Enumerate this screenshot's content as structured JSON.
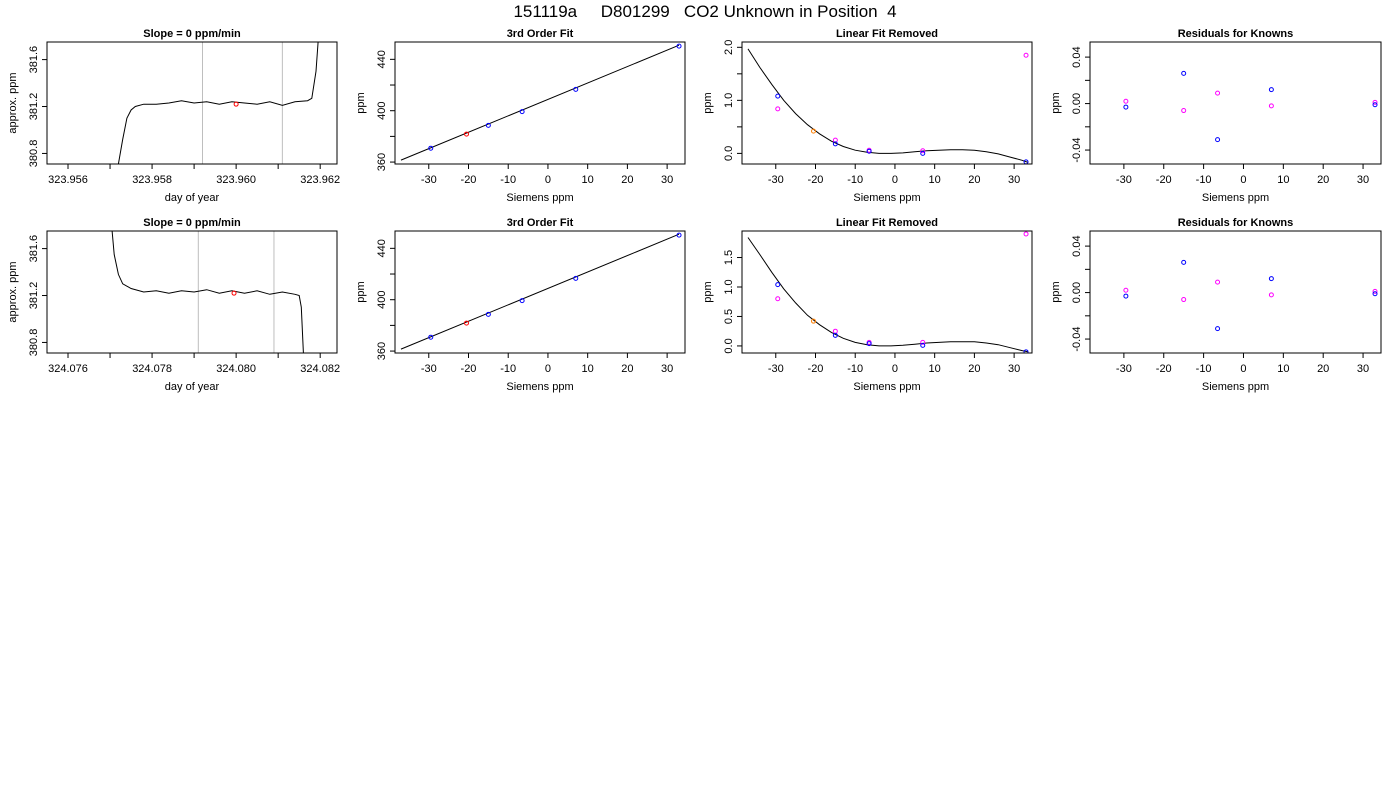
{
  "figure": {
    "title": "151119a     D801299   CO2 Unknown in Position  4"
  },
  "colors": {
    "trace": "#000000",
    "vline": "#bebebe",
    "blue": "#0000ff",
    "magenta": "#ff00ff",
    "red": "#ff0000",
    "orange": "#ff7f00"
  },
  "chart_data": [
    {
      "type": "line",
      "title": "Slope =  0  ppm/min",
      "xlabel": "day of year",
      "ylabel": "approx. ppm",
      "xlim": [
        323.9555,
        323.9624
      ],
      "ylim": [
        380.71,
        381.75
      ],
      "xticks": [
        323.956,
        323.958,
        323.96,
        323.962
      ],
      "xticklabels": [
        "323.956",
        "323.958",
        "323.960",
        "323.962"
      ],
      "xminor": [
        323.957,
        323.959,
        323.961
      ],
      "yticks": [
        380.8,
        381.2,
        381.6
      ],
      "yticklabels": [
        "380.8",
        "381.2",
        "381.6"
      ],
      "vlines": [
        323.9592,
        323.9611
      ],
      "series": [
        {
          "values": [
            [
              323.9572,
              380.71
            ],
            [
              323.9573,
              380.92
            ],
            [
              323.9574,
              381.1
            ],
            [
              323.9575,
              381.17
            ],
            [
              323.9576,
              381.2
            ],
            [
              323.9578,
              381.22
            ],
            [
              323.9581,
              381.22
            ],
            [
              323.9584,
              381.23
            ],
            [
              323.9587,
              381.25
            ],
            [
              323.959,
              381.23
            ],
            [
              323.9593,
              381.24
            ],
            [
              323.9596,
              381.22
            ],
            [
              323.9599,
              381.24
            ],
            [
              323.9602,
              381.23
            ],
            [
              323.9605,
              381.22
            ],
            [
              323.9608,
              381.24
            ],
            [
              323.9611,
              381.21
            ],
            [
              323.9614,
              381.24
            ],
            [
              323.9617,
              381.25
            ],
            [
              323.9618,
              381.27
            ],
            [
              323.9619,
              381.5
            ],
            [
              323.96195,
              381.75
            ]
          ]
        }
      ],
      "highlight": {
        "x": 323.96,
        "y": 381.22,
        "color": "red"
      }
    },
    {
      "type": "scatter",
      "title": "3rd Order Fit",
      "xlabel": "Siemens ppm",
      "ylabel": "ppm",
      "xlim": [
        -38.5,
        34.5
      ],
      "ylim": [
        358.5,
        453.5
      ],
      "xticks": [
        -30,
        -20,
        -10,
        0,
        10,
        20,
        30
      ],
      "xticklabels": [
        "-30",
        "-20",
        "-10",
        "0",
        "10",
        "20",
        "30"
      ],
      "yticks": [
        360,
        400,
        440
      ],
      "yticklabels": [
        "360",
        "400",
        "440"
      ],
      "yminor": [
        380,
        420
      ],
      "fit_line": [
        [
          -37,
          361.5
        ],
        [
          33,
          451
        ]
      ],
      "points": [
        {
          "x": -29.5,
          "y": 370.8,
          "color": "blue"
        },
        {
          "x": -20.5,
          "y": 381.8,
          "color": "red"
        },
        {
          "x": -15,
          "y": 388.6,
          "color": "blue"
        },
        {
          "x": -6.5,
          "y": 399.3,
          "color": "blue"
        },
        {
          "x": 7,
          "y": 416.6,
          "color": "blue"
        },
        {
          "x": 33,
          "y": 450.3,
          "color": "blue"
        }
      ]
    },
    {
      "type": "scatter",
      "title": "Linear Fit Removed",
      "xlabel": "Siemens ppm",
      "ylabel": "ppm",
      "xlim": [
        -38.5,
        34.5
      ],
      "ylim": [
        -0.2,
        2.1
      ],
      "xticks": [
        -30,
        -20,
        -10,
        0,
        10,
        20,
        30
      ],
      "xticklabels": [
        "-30",
        "-20",
        "-10",
        "0",
        "10",
        "20",
        "30"
      ],
      "yticks": [
        0,
        1,
        2
      ],
      "yticklabels": [
        "0.0",
        "1.0",
        "2.0"
      ],
      "yminor": [
        0.5,
        1.5
      ],
      "curve": [
        [
          -37,
          1.97
        ],
        [
          -34,
          1.62
        ],
        [
          -31,
          1.3
        ],
        [
          -28,
          1.0
        ],
        [
          -25,
          0.75
        ],
        [
          -22,
          0.54
        ],
        [
          -19,
          0.37
        ],
        [
          -16,
          0.23
        ],
        [
          -13,
          0.13
        ],
        [
          -10,
          0.06
        ],
        [
          -7,
          0.02
        ],
        [
          -4,
          0.0
        ],
        [
          -1,
          0.0
        ],
        [
          2,
          0.01
        ],
        [
          5,
          0.03
        ],
        [
          8,
          0.05
        ],
        [
          11,
          0.06
        ],
        [
          14,
          0.07
        ],
        [
          17,
          0.07
        ],
        [
          20,
          0.06
        ],
        [
          23,
          0.03
        ],
        [
          26,
          -0.01
        ],
        [
          29,
          -0.07
        ],
        [
          32,
          -0.13
        ],
        [
          33.5,
          -0.17
        ]
      ],
      "points": [
        {
          "x": -29.5,
          "y": 1.08,
          "color": "blue"
        },
        {
          "x": -29.5,
          "y": 0.84,
          "color": "magenta"
        },
        {
          "x": -20.5,
          "y": 0.42,
          "color": "orange"
        },
        {
          "x": -15,
          "y": 0.25,
          "color": "magenta"
        },
        {
          "x": -15,
          "y": 0.18,
          "color": "blue"
        },
        {
          "x": -6.5,
          "y": 0.06,
          "color": "magenta"
        },
        {
          "x": -6.5,
          "y": 0.04,
          "color": "blue"
        },
        {
          "x": 7,
          "y": 0.05,
          "color": "magenta"
        },
        {
          "x": 7,
          "y": 0.0,
          "color": "blue"
        },
        {
          "x": 33,
          "y": 1.85,
          "color": "magenta"
        },
        {
          "x": 33,
          "y": -0.16,
          "color": "blue"
        }
      ]
    },
    {
      "type": "scatter",
      "title": "Residuals for Knowns",
      "xlabel": "Siemens ppm",
      "ylabel": "ppm",
      "xlim": [
        -38.5,
        34.5
      ],
      "ylim": [
        -0.052,
        0.053
      ],
      "xticks": [
        -30,
        -20,
        -10,
        0,
        10,
        20,
        30
      ],
      "xticklabels": [
        "-30",
        "-20",
        "-10",
        "0",
        "10",
        "20",
        "30"
      ],
      "yticks": [
        -0.04,
        0,
        0.04
      ],
      "yticklabels": [
        "-0.04",
        "0.00",
        "0.04"
      ],
      "yminor": [
        -0.02,
        0.02
      ],
      "points": [
        {
          "x": -29.5,
          "y": 0.002,
          "color": "magenta"
        },
        {
          "x": -29.5,
          "y": -0.003,
          "color": "blue"
        },
        {
          "x": -15,
          "y": 0.026,
          "color": "blue"
        },
        {
          "x": -15,
          "y": -0.006,
          "color": "magenta"
        },
        {
          "x": -6.5,
          "y": 0.009,
          "color": "magenta"
        },
        {
          "x": -6.5,
          "y": -0.031,
          "color": "blue"
        },
        {
          "x": 7,
          "y": 0.012,
          "color": "blue"
        },
        {
          "x": 7,
          "y": -0.002,
          "color": "magenta"
        },
        {
          "x": 33,
          "y": 0.001,
          "color": "magenta"
        },
        {
          "x": 33,
          "y": -0.001,
          "color": "blue"
        }
      ]
    },
    {
      "type": "line",
      "title": "Slope =  0  ppm/min",
      "xlabel": "day of year",
      "ylabel": "approx. ppm",
      "xlim": [
        324.0755,
        324.0824
      ],
      "ylim": [
        380.71,
        381.75
      ],
      "xticks": [
        324.076,
        324.078,
        324.08,
        324.082
      ],
      "xticklabels": [
        "324.076",
        "324.078",
        "324.080",
        "324.082"
      ],
      "xminor": [
        324.077,
        324.079,
        324.081
      ],
      "yticks": [
        380.8,
        381.2,
        381.6
      ],
      "yticklabels": [
        "380.8",
        "381.2",
        "381.6"
      ],
      "vlines": [
        324.0791,
        324.0809
      ],
      "series": [
        {
          "values": [
            [
              324.07705,
              381.75
            ],
            [
              324.0771,
              381.55
            ],
            [
              324.0772,
              381.38
            ],
            [
              324.0773,
              381.3
            ],
            [
              324.0775,
              381.26
            ],
            [
              324.0778,
              381.23
            ],
            [
              324.0781,
              381.24
            ],
            [
              324.0784,
              381.22
            ],
            [
              324.0787,
              381.24
            ],
            [
              324.079,
              381.23
            ],
            [
              324.0793,
              381.25
            ],
            [
              324.0796,
              381.22
            ],
            [
              324.0799,
              381.24
            ],
            [
              324.0802,
              381.22
            ],
            [
              324.0805,
              381.24
            ],
            [
              324.0808,
              381.21
            ],
            [
              324.0811,
              381.23
            ],
            [
              324.0814,
              381.21
            ],
            [
              324.0815,
              381.2
            ],
            [
              324.08155,
              381.1
            ],
            [
              324.0816,
              380.71
            ]
          ]
        }
      ],
      "highlight": {
        "x": 324.07995,
        "y": 381.22,
        "color": "red"
      }
    },
    {
      "type": "scatter",
      "title": "3rd Order Fit",
      "xlabel": "Siemens ppm",
      "ylabel": "ppm",
      "xlim": [
        -38.5,
        34.5
      ],
      "ylim": [
        358.5,
        453.5
      ],
      "xticks": [
        -30,
        -20,
        -10,
        0,
        10,
        20,
        30
      ],
      "xticklabels": [
        "-30",
        "-20",
        "-10",
        "0",
        "10",
        "20",
        "30"
      ],
      "yticks": [
        360,
        400,
        440
      ],
      "yticklabels": [
        "360",
        "400",
        "440"
      ],
      "yminor": [
        380,
        420
      ],
      "fit_line": [
        [
          -37,
          361.5
        ],
        [
          33,
          451
        ]
      ],
      "points": [
        {
          "x": -29.5,
          "y": 370.8,
          "color": "blue"
        },
        {
          "x": -20.5,
          "y": 381.8,
          "color": "red"
        },
        {
          "x": -15,
          "y": 388.6,
          "color": "blue"
        },
        {
          "x": -6.5,
          "y": 399.3,
          "color": "blue"
        },
        {
          "x": 7,
          "y": 416.6,
          "color": "blue"
        },
        {
          "x": 33,
          "y": 450.3,
          "color": "blue"
        }
      ]
    },
    {
      "type": "scatter",
      "title": "Linear Fit Removed",
      "xlabel": "Siemens ppm",
      "ylabel": "ppm",
      "xlim": [
        -38.5,
        34.5
      ],
      "ylim": [
        -0.12,
        1.95
      ],
      "xticks": [
        -30,
        -20,
        -10,
        0,
        10,
        20,
        30
      ],
      "xticklabels": [
        "-30",
        "-20",
        "-10",
        "0",
        "10",
        "20",
        "30"
      ],
      "yticks": [
        0,
        0.5,
        1,
        1.5
      ],
      "yticklabels": [
        "0.0",
        "0.5",
        "1.0",
        "1.5"
      ],
      "curve": [
        [
          -37,
          1.84
        ],
        [
          -34,
          1.55
        ],
        [
          -31,
          1.25
        ],
        [
          -28,
          0.97
        ],
        [
          -25,
          0.73
        ],
        [
          -22,
          0.52
        ],
        [
          -19,
          0.36
        ],
        [
          -16,
          0.23
        ],
        [
          -13,
          0.13
        ],
        [
          -10,
          0.06
        ],
        [
          -7,
          0.02
        ],
        [
          -4,
          0.0
        ],
        [
          -1,
          0.0
        ],
        [
          2,
          0.01
        ],
        [
          5,
          0.03
        ],
        [
          8,
          0.05
        ],
        [
          11,
          0.06
        ],
        [
          14,
          0.07
        ],
        [
          17,
          0.07
        ],
        [
          20,
          0.07
        ],
        [
          23,
          0.05
        ],
        [
          26,
          0.02
        ],
        [
          29,
          -0.03
        ],
        [
          32,
          -0.08
        ],
        [
          33.5,
          -0.1
        ]
      ],
      "points": [
        {
          "x": -29.5,
          "y": 1.04,
          "color": "blue"
        },
        {
          "x": -29.5,
          "y": 0.8,
          "color": "magenta"
        },
        {
          "x": -20.5,
          "y": 0.42,
          "color": "orange"
        },
        {
          "x": -15,
          "y": 0.25,
          "color": "magenta"
        },
        {
          "x": -15,
          "y": 0.18,
          "color": "blue"
        },
        {
          "x": -6.5,
          "y": 0.06,
          "color": "magenta"
        },
        {
          "x": -6.5,
          "y": 0.04,
          "color": "blue"
        },
        {
          "x": 7,
          "y": 0.06,
          "color": "magenta"
        },
        {
          "x": 7,
          "y": 0.01,
          "color": "blue"
        },
        {
          "x": 33,
          "y": 1.9,
          "color": "magenta"
        },
        {
          "x": 33,
          "y": -0.1,
          "color": "blue"
        }
      ]
    },
    {
      "type": "scatter",
      "title": "Residuals for Knowns",
      "xlabel": "Siemens ppm",
      "ylabel": "ppm",
      "xlim": [
        -38.5,
        34.5
      ],
      "ylim": [
        -0.052,
        0.053
      ],
      "xticks": [
        -30,
        -20,
        -10,
        0,
        10,
        20,
        30
      ],
      "xticklabels": [
        "-30",
        "-20",
        "-10",
        "0",
        "10",
        "20",
        "30"
      ],
      "yticks": [
        -0.04,
        0,
        0.04
      ],
      "yticklabels": [
        "-0.04",
        "0.00",
        "0.04"
      ],
      "yminor": [
        -0.02,
        0.02
      ],
      "points": [
        {
          "x": -29.5,
          "y": 0.002,
          "color": "magenta"
        },
        {
          "x": -29.5,
          "y": -0.003,
          "color": "blue"
        },
        {
          "x": -15,
          "y": 0.026,
          "color": "blue"
        },
        {
          "x": -15,
          "y": -0.006,
          "color": "magenta"
        },
        {
          "x": -6.5,
          "y": 0.009,
          "color": "magenta"
        },
        {
          "x": -6.5,
          "y": -0.031,
          "color": "blue"
        },
        {
          "x": 7,
          "y": 0.012,
          "color": "blue"
        },
        {
          "x": 7,
          "y": -0.002,
          "color": "magenta"
        },
        {
          "x": 33,
          "y": 0.001,
          "color": "magenta"
        },
        {
          "x": 33,
          "y": -0.001,
          "color": "blue"
        }
      ]
    }
  ]
}
